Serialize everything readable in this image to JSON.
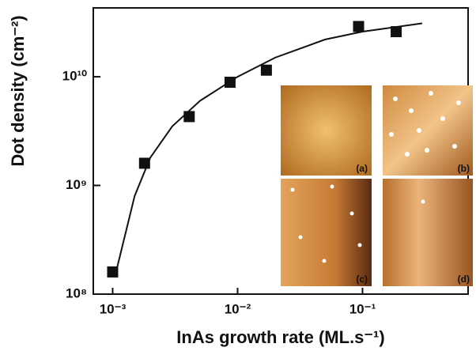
{
  "chart_data": {
    "type": "scatter",
    "xlabel": "InAs growth rate (ML.s⁻¹)",
    "ylabel": "Dot density (cm⁻²)",
    "xscale": "log",
    "yscale": "log",
    "xlim": [
      0.0007,
      0.7
    ],
    "ylim": [
      100000000,
      43000000000
    ],
    "xticks": [
      {
        "value": 0.001,
        "label": "10⁻³"
      },
      {
        "value": 0.01,
        "label": "10⁻²"
      },
      {
        "value": 0.1,
        "label": "10⁻¹"
      }
    ],
    "yticks": [
      {
        "value": 100000000,
        "label": "10⁸"
      },
      {
        "value": 1000000000,
        "label": "10⁹"
      },
      {
        "value": 10000000000,
        "label": "10¹⁰"
      }
    ],
    "series": [
      {
        "color": "#111111",
        "x": [
          0.001,
          0.0018,
          0.0041,
          0.0087,
          0.017,
          0.093,
          0.186
        ],
        "values": [
          160000000,
          1600000000,
          4300000000,
          8900000000,
          11500000000,
          29000000000,
          26000000000
        ]
      },
      {
        "type": "line",
        "color": "#111111",
        "x": [
          0.00105,
          0.0015,
          0.002,
          0.003,
          0.005,
          0.01,
          0.02,
          0.05,
          0.1,
          0.3
        ],
        "values": [
          150000000,
          800000000,
          1800000000,
          3500000000,
          6000000000,
          10000000000,
          15000000000,
          22000000000,
          26000000000,
          31000000000
        ]
      }
    ],
    "inset_labels": [
      "(a)",
      "(b)",
      "(c)",
      "(d)"
    ]
  }
}
